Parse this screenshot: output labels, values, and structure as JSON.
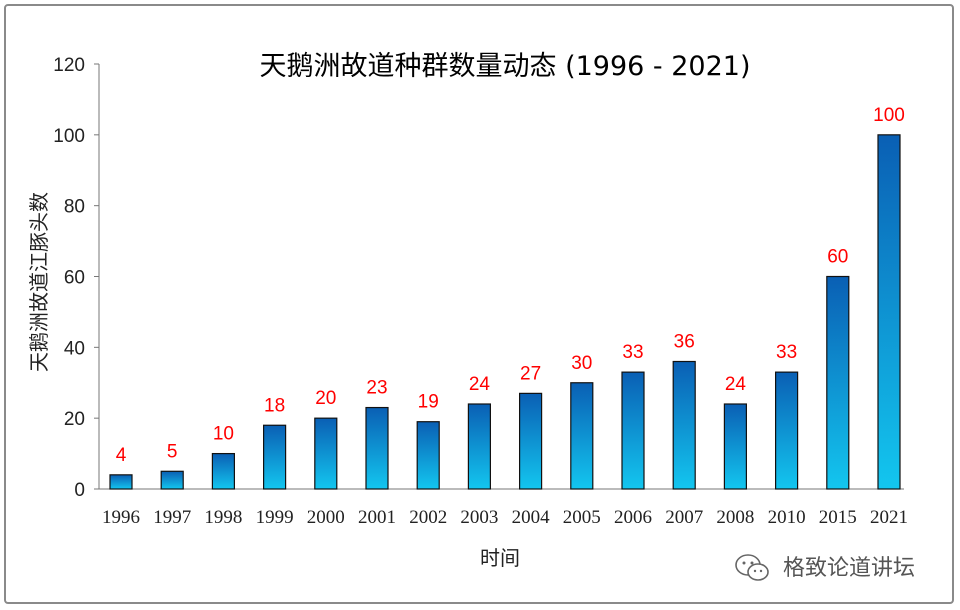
{
  "chart_data": {
    "type": "bar",
    "title": "天鹅洲故道种群数量动态 (1996 - 2021)",
    "xlabel": "时间",
    "ylabel": "天鹅洲故道江豚头数",
    "categories": [
      "1996",
      "1997",
      "1998",
      "1999",
      "2000",
      "2001",
      "2002",
      "2003",
      "2004",
      "2005",
      "2006",
      "2007",
      "2008",
      "2010",
      "2015",
      "2021"
    ],
    "values": [
      4,
      5,
      10,
      18,
      20,
      23,
      19,
      24,
      27,
      30,
      33,
      36,
      24,
      33,
      60,
      100
    ],
    "ylim": [
      0,
      120
    ],
    "yticks": [
      0,
      20,
      40,
      60,
      80,
      100,
      120
    ],
    "grid": false,
    "legend": "none",
    "bar_gradient": [
      "#0a5fb4",
      "#13c6ef"
    ],
    "label_color": "#ff0000"
  },
  "watermark": "格致论道讲坛"
}
